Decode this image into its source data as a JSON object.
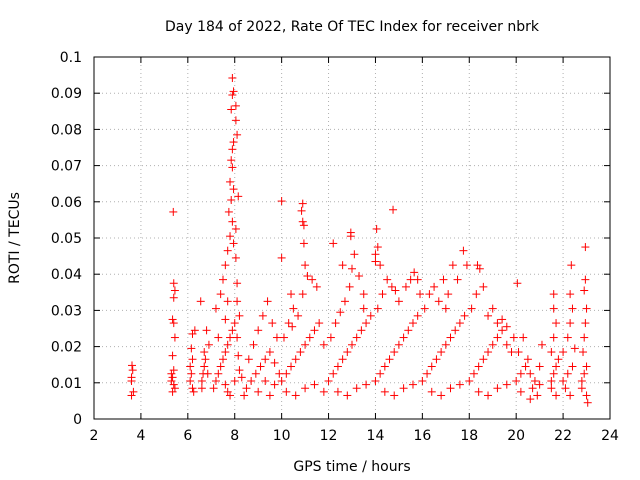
{
  "chart_data": {
    "type": "scatter",
    "title": "Day 184 of 2022, Rate Of TEC Index for receiver nbrk",
    "xlabel": "GPS time / hours",
    "ylabel": "ROTI / TECUs",
    "xlim": [
      2,
      24
    ],
    "ylim": [
      0,
      0.1
    ],
    "x_ticks": [
      "2",
      "4",
      "6",
      "8",
      "10",
      "12",
      "14",
      "16",
      "18",
      "20",
      "22",
      "24"
    ],
    "y_ticks": [
      "0",
      "0.01",
      "0.02",
      "0.03",
      "0.04",
      "0.05",
      "0.06",
      "0.07",
      "0.08",
      "0.09",
      "0.1"
    ],
    "grid": true,
    "marker": "+",
    "color": "#ff0000",
    "series": [
      {
        "name": "ROTI",
        "points": [
          [
            3.6,
            0.0065
          ],
          [
            3.6,
            0.0105
          ],
          [
            3.65,
            0.0135
          ],
          [
            3.62,
            0.0148
          ],
          [
            3.68,
            0.0075
          ],
          [
            3.6,
            0.0115
          ],
          [
            5.3,
            0.0105
          ],
          [
            5.35,
            0.0115
          ],
          [
            5.4,
            0.0095
          ],
          [
            5.3,
            0.0125
          ],
          [
            5.45,
            0.0085
          ],
          [
            5.35,
            0.0075
          ],
          [
            5.4,
            0.0135
          ],
          [
            5.35,
            0.0175
          ],
          [
            5.45,
            0.0225
          ],
          [
            5.4,
            0.0265
          ],
          [
            5.35,
            0.0275
          ],
          [
            5.4,
            0.0335
          ],
          [
            5.45,
            0.0355
          ],
          [
            5.4,
            0.0375
          ],
          [
            5.38,
            0.0572
          ],
          [
            6.1,
            0.0105
          ],
          [
            6.15,
            0.0125
          ],
          [
            6.2,
            0.0085
          ],
          [
            6.1,
            0.0145
          ],
          [
            6.2,
            0.0165
          ],
          [
            6.15,
            0.0195
          ],
          [
            6.25,
            0.0075
          ],
          [
            6.3,
            0.0245
          ],
          [
            6.2,
            0.0235
          ],
          [
            6.6,
            0.0105
          ],
          [
            6.65,
            0.0125
          ],
          [
            6.7,
            0.0145
          ],
          [
            6.6,
            0.0085
          ],
          [
            6.75,
            0.0165
          ],
          [
            6.7,
            0.0185
          ],
          [
            6.8,
            0.0245
          ],
          [
            6.55,
            0.0325
          ],
          [
            6.9,
            0.0205
          ],
          [
            6.85,
            0.0125
          ],
          [
            7.1,
            0.0085
          ],
          [
            7.2,
            0.0105
          ],
          [
            7.3,
            0.0125
          ],
          [
            7.4,
            0.0145
          ],
          [
            7.5,
            0.0165
          ],
          [
            7.6,
            0.0185
          ],
          [
            7.7,
            0.0205
          ],
          [
            7.8,
            0.0225
          ],
          [
            7.9,
            0.0245
          ],
          [
            8.0,
            0.0265
          ],
          [
            7.2,
            0.0305
          ],
          [
            7.4,
            0.0345
          ],
          [
            7.5,
            0.0385
          ],
          [
            7.6,
            0.0425
          ],
          [
            7.7,
            0.0465
          ],
          [
            7.8,
            0.0505
          ],
          [
            7.9,
            0.0545
          ],
          [
            7.75,
            0.0572
          ],
          [
            7.85,
            0.0605
          ],
          [
            7.95,
            0.0635
          ],
          [
            7.8,
            0.0655
          ],
          [
            7.9,
            0.0695
          ],
          [
            7.85,
            0.0715
          ],
          [
            7.9,
            0.0745
          ],
          [
            7.95,
            0.0765
          ],
          [
            8.1,
            0.0785
          ],
          [
            8.05,
            0.0825
          ],
          [
            7.85,
            0.0855
          ],
          [
            8.05,
            0.0865
          ],
          [
            7.9,
            0.0895
          ],
          [
            7.95,
            0.0905
          ],
          [
            7.9,
            0.0942
          ],
          [
            7.3,
            0.0225
          ],
          [
            7.6,
            0.0275
          ],
          [
            7.7,
            0.0325
          ],
          [
            8.1,
            0.0325
          ],
          [
            8.2,
            0.0285
          ],
          [
            8.1,
            0.0225
          ],
          [
            8.15,
            0.0175
          ],
          [
            8.2,
            0.0135
          ],
          [
            8.0,
            0.0105
          ],
          [
            7.6,
            0.0095
          ],
          [
            7.7,
            0.0075
          ],
          [
            7.8,
            0.0065
          ],
          [
            8.3,
            0.0115
          ],
          [
            8.1,
            0.0375
          ],
          [
            8.05,
            0.0445
          ],
          [
            7.95,
            0.0485
          ],
          [
            8.05,
            0.0525
          ],
          [
            8.15,
            0.0615
          ],
          [
            8.5,
            0.0085
          ],
          [
            8.7,
            0.0105
          ],
          [
            8.9,
            0.0125
          ],
          [
            9.1,
            0.0145
          ],
          [
            9.3,
            0.0165
          ],
          [
            9.5,
            0.0185
          ],
          [
            9.7,
            0.0155
          ],
          [
            9.9,
            0.0125
          ],
          [
            8.6,
            0.0165
          ],
          [
            8.8,
            0.0205
          ],
          [
            9.0,
            0.0245
          ],
          [
            9.2,
            0.0285
          ],
          [
            9.4,
            0.0325
          ],
          [
            9.6,
            0.0265
          ],
          [
            9.8,
            0.0225
          ],
          [
            8.4,
            0.0065
          ],
          [
            9.0,
            0.0075
          ],
          [
            9.5,
            0.0065
          ],
          [
            9.3,
            0.0105
          ],
          [
            9.7,
            0.0095
          ],
          [
            10.0,
            0.0105
          ],
          [
            10.2,
            0.0125
          ],
          [
            10.4,
            0.0145
          ],
          [
            10.6,
            0.0165
          ],
          [
            10.8,
            0.0185
          ],
          [
            11.0,
            0.0205
          ],
          [
            11.2,
            0.0225
          ],
          [
            11.4,
            0.0245
          ],
          [
            11.6,
            0.0265
          ],
          [
            11.8,
            0.0205
          ],
          [
            10.1,
            0.0225
          ],
          [
            10.3,
            0.0265
          ],
          [
            10.5,
            0.0305
          ],
          [
            10.7,
            0.0285
          ],
          [
            10.9,
            0.0345
          ],
          [
            11.1,
            0.0395
          ],
          [
            11.3,
            0.0385
          ],
          [
            11.5,
            0.0365
          ],
          [
            10.0,
            0.0445
          ],
          [
            10.0,
            0.0602
          ],
          [
            10.9,
            0.0595
          ],
          [
            10.85,
            0.0575
          ],
          [
            10.9,
            0.0545
          ],
          [
            10.95,
            0.0535
          ],
          [
            10.95,
            0.0485
          ],
          [
            11.0,
            0.0425
          ],
          [
            10.2,
            0.0075
          ],
          [
            10.6,
            0.0065
          ],
          [
            11.0,
            0.0085
          ],
          [
            11.4,
            0.0095
          ],
          [
            11.8,
            0.0075
          ],
          [
            10.4,
            0.0345
          ],
          [
            10.45,
            0.0255
          ],
          [
            12.0,
            0.0105
          ],
          [
            12.2,
            0.0125
          ],
          [
            12.4,
            0.0145
          ],
          [
            12.6,
            0.0165
          ],
          [
            12.8,
            0.0185
          ],
          [
            13.0,
            0.0205
          ],
          [
            13.2,
            0.0225
          ],
          [
            13.4,
            0.0245
          ],
          [
            13.6,
            0.0265
          ],
          [
            13.8,
            0.0285
          ],
          [
            12.1,
            0.0225
          ],
          [
            12.3,
            0.0265
          ],
          [
            12.5,
            0.0295
          ],
          [
            12.7,
            0.0325
          ],
          [
            12.9,
            0.0365
          ],
          [
            13.0,
            0.0415
          ],
          [
            12.95,
            0.0505
          ],
          [
            12.95,
            0.0515
          ],
          [
            12.2,
            0.0485
          ],
          [
            13.1,
            0.0455
          ],
          [
            13.3,
            0.0395
          ],
          [
            13.5,
            0.0345
          ],
          [
            12.4,
            0.0075
          ],
          [
            12.8,
            0.0065
          ],
          [
            13.2,
            0.0085
          ],
          [
            13.6,
            0.0095
          ],
          [
            12.6,
            0.0425
          ],
          [
            13.5,
            0.0305
          ],
          [
            14.0,
            0.0105
          ],
          [
            14.2,
            0.0125
          ],
          [
            14.4,
            0.0145
          ],
          [
            14.6,
            0.0165
          ],
          [
            14.8,
            0.0185
          ],
          [
            15.0,
            0.0205
          ],
          [
            15.2,
            0.0225
          ],
          [
            15.4,
            0.0245
          ],
          [
            15.6,
            0.0265
          ],
          [
            15.8,
            0.0285
          ],
          [
            14.1,
            0.0305
          ],
          [
            14.3,
            0.0345
          ],
          [
            14.5,
            0.0385
          ],
          [
            14.0,
            0.0435
          ],
          [
            14.0,
            0.0455
          ],
          [
            14.1,
            0.0475
          ],
          [
            14.05,
            0.0525
          ],
          [
            14.2,
            0.0425
          ],
          [
            14.7,
            0.0365
          ],
          [
            14.75,
            0.0578
          ],
          [
            14.85,
            0.0355
          ],
          [
            15.0,
            0.0325
          ],
          [
            15.3,
            0.0365
          ],
          [
            15.5,
            0.0385
          ],
          [
            15.65,
            0.0405
          ],
          [
            15.8,
            0.0385
          ],
          [
            14.4,
            0.0075
          ],
          [
            14.8,
            0.0065
          ],
          [
            15.2,
            0.0085
          ],
          [
            15.6,
            0.0095
          ],
          [
            15.9,
            0.0345
          ],
          [
            16.0,
            0.0105
          ],
          [
            16.2,
            0.0125
          ],
          [
            16.4,
            0.0145
          ],
          [
            16.6,
            0.0165
          ],
          [
            16.8,
            0.0185
          ],
          [
            17.0,
            0.0205
          ],
          [
            17.2,
            0.0225
          ],
          [
            17.4,
            0.0245
          ],
          [
            17.6,
            0.0265
          ],
          [
            17.8,
            0.0285
          ],
          [
            16.1,
            0.0305
          ],
          [
            16.3,
            0.0345
          ],
          [
            16.5,
            0.0365
          ],
          [
            16.7,
            0.0325
          ],
          [
            16.9,
            0.0385
          ],
          [
            17.1,
            0.0345
          ],
          [
            17.3,
            0.0425
          ],
          [
            17.5,
            0.0385
          ],
          [
            17.75,
            0.0465
          ],
          [
            17.9,
            0.0425
          ],
          [
            16.4,
            0.0075
          ],
          [
            16.8,
            0.0065
          ],
          [
            17.2,
            0.0085
          ],
          [
            17.6,
            0.0095
          ],
          [
            17.0,
            0.0305
          ],
          [
            18.0,
            0.0105
          ],
          [
            18.2,
            0.0125
          ],
          [
            18.4,
            0.0145
          ],
          [
            18.6,
            0.0165
          ],
          [
            18.8,
            0.0185
          ],
          [
            19.0,
            0.0205
          ],
          [
            19.2,
            0.0225
          ],
          [
            19.4,
            0.0245
          ],
          [
            19.6,
            0.0205
          ],
          [
            19.8,
            0.0185
          ],
          [
            18.1,
            0.0305
          ],
          [
            18.3,
            0.0345
          ],
          [
            18.35,
            0.0425
          ],
          [
            18.45,
            0.0415
          ],
          [
            18.6,
            0.0365
          ],
          [
            18.8,
            0.0285
          ],
          [
            19.0,
            0.0305
          ],
          [
            19.2,
            0.0265
          ],
          [
            19.4,
            0.0275
          ],
          [
            19.6,
            0.0255
          ],
          [
            18.4,
            0.0075
          ],
          [
            18.8,
            0.0065
          ],
          [
            19.2,
            0.0085
          ],
          [
            19.6,
            0.0095
          ],
          [
            19.9,
            0.0225
          ],
          [
            20.0,
            0.0105
          ],
          [
            20.2,
            0.0125
          ],
          [
            20.4,
            0.0145
          ],
          [
            20.6,
            0.0125
          ],
          [
            20.8,
            0.0105
          ],
          [
            21.0,
            0.0145
          ],
          [
            20.1,
            0.0185
          ],
          [
            20.3,
            0.0225
          ],
          [
            20.05,
            0.0375
          ],
          [
            20.5,
            0.0165
          ],
          [
            20.7,
            0.0085
          ],
          [
            20.9,
            0.0065
          ],
          [
            20.2,
            0.0075
          ],
          [
            20.6,
            0.0055
          ],
          [
            21.1,
            0.0205
          ],
          [
            21.0,
            0.0095
          ],
          [
            21.5,
            0.0105
          ],
          [
            21.6,
            0.0125
          ],
          [
            21.7,
            0.0145
          ],
          [
            21.5,
            0.0185
          ],
          [
            21.6,
            0.0225
          ],
          [
            21.7,
            0.0265
          ],
          [
            21.6,
            0.0305
          ],
          [
            21.6,
            0.0345
          ],
          [
            21.5,
            0.0085
          ],
          [
            21.7,
            0.0065
          ],
          [
            21.8,
            0.0165
          ],
          [
            22.0,
            0.0105
          ],
          [
            22.2,
            0.0125
          ],
          [
            22.4,
            0.0145
          ],
          [
            22.0,
            0.0185
          ],
          [
            22.2,
            0.0225
          ],
          [
            22.3,
            0.0265
          ],
          [
            22.4,
            0.0305
          ],
          [
            22.3,
            0.0345
          ],
          [
            22.35,
            0.0425
          ],
          [
            22.1,
            0.0085
          ],
          [
            22.3,
            0.0065
          ],
          [
            22.5,
            0.0195
          ],
          [
            22.8,
            0.0105
          ],
          [
            22.9,
            0.0125
          ],
          [
            23.0,
            0.0145
          ],
          [
            22.85,
            0.0185
          ],
          [
            22.9,
            0.0225
          ],
          [
            22.95,
            0.0265
          ],
          [
            23.0,
            0.0305
          ],
          [
            22.9,
            0.0355
          ],
          [
            22.95,
            0.0385
          ],
          [
            22.95,
            0.0475
          ],
          [
            22.8,
            0.0085
          ],
          [
            23.0,
            0.0065
          ],
          [
            23.05,
            0.0045
          ]
        ]
      }
    ]
  }
}
